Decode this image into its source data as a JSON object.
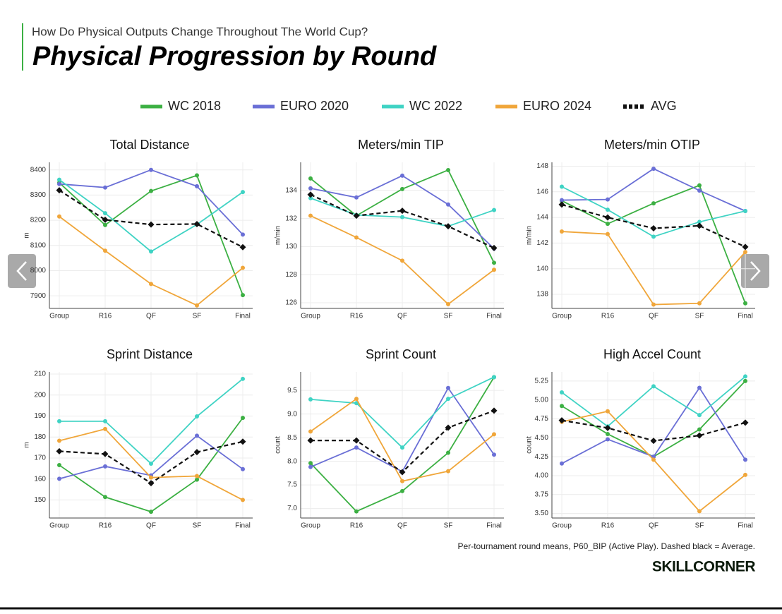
{
  "header": {
    "subtitle": "How Do Physical Outputs Change Throughout The World Cup?",
    "title": "Physical Progression by Round"
  },
  "legend": [
    {
      "name": "WC 2018",
      "color": "#3cb043"
    },
    {
      "name": "EURO 2020",
      "color": "#6a6fd6"
    },
    {
      "name": "WC 2022",
      "color": "#3fd3c4"
    },
    {
      "name": "EURO 2024",
      "color": "#f0a63a"
    },
    {
      "name": "AVG",
      "color": "#111111",
      "dashed": true
    }
  ],
  "chart_data": [
    {
      "type": "line",
      "title": "Total Distance",
      "ylabel": "m",
      "categories": [
        "Group",
        "R16",
        "QF",
        "SF",
        "Final"
      ],
      "series": [
        {
          "values": [
            8349,
            8181,
            8316,
            8378,
            7903
          ]
        },
        {
          "values": [
            8344,
            8330,
            8400,
            8335,
            8143
          ]
        },
        {
          "values": [
            8361,
            8228,
            8076,
            8183,
            8312
          ]
        },
        {
          "values": [
            8215,
            8079,
            7947,
            7862,
            8011
          ]
        },
        {
          "values": [
            8319,
            8202,
            8183,
            8185,
            8093
          ]
        }
      ],
      "ylim": [
        7850,
        8430
      ],
      "yticks": [
        7900,
        8000,
        8100,
        8200,
        8300,
        8400
      ],
      "grid": true
    },
    {
      "type": "line",
      "title": "Meters/min TIP",
      "ylabel": "m/min",
      "categories": [
        "Group",
        "R16",
        "QF",
        "SF",
        "Final"
      ],
      "series": [
        {
          "values": [
            134.85,
            132.2,
            134.1,
            135.45,
            128.85
          ]
        },
        {
          "values": [
            134.15,
            133.5,
            135.05,
            133.0,
            129.85
          ]
        },
        {
          "values": [
            133.45,
            132.25,
            132.1,
            131.45,
            132.6
          ]
        },
        {
          "values": [
            132.2,
            130.65,
            129.0,
            125.9,
            128.35
          ]
        },
        {
          "values": [
            133.7,
            132.2,
            132.55,
            131.45,
            129.9
          ]
        }
      ],
      "ylim": [
        125.6,
        136
      ],
      "yticks": [
        126,
        128,
        130,
        132,
        134
      ],
      "grid": true
    },
    {
      "type": "line",
      "title": "Meters/min OTIP",
      "ylabel": "m/min",
      "categories": [
        "Group",
        "R16",
        "QF",
        "SF",
        "Final"
      ],
      "series": [
        {
          "values": [
            145.3,
            143.5,
            145.1,
            146.5,
            137.3
          ]
        },
        {
          "values": [
            145.35,
            145.4,
            147.8,
            146.1,
            144.5
          ]
        },
        {
          "values": [
            146.4,
            144.6,
            142.5,
            143.65,
            144.5
          ]
        },
        {
          "values": [
            142.9,
            142.7,
            137.2,
            137.3,
            141.3
          ]
        },
        {
          "values": [
            145.0,
            144.0,
            143.15,
            143.35,
            141.7
          ]
        }
      ],
      "ylim": [
        136.9,
        148.3
      ],
      "yticks": [
        138,
        140,
        142,
        144,
        146,
        148
      ],
      "grid": true
    },
    {
      "type": "line",
      "title": "Sprint Distance",
      "ylabel": "m",
      "categories": [
        "Group",
        "R16",
        "QF",
        "SF",
        "Final"
      ],
      "series": [
        {
          "values": [
            166.6,
            151.4,
            144.4,
            159.7,
            189.1
          ]
        },
        {
          "values": [
            160.1,
            166.0,
            161.7,
            180.6,
            164.7
          ]
        },
        {
          "values": [
            187.5,
            187.5,
            167.3,
            189.8,
            207.7
          ]
        },
        {
          "values": [
            178.2,
            183.8,
            160.7,
            161.4,
            150
          ]
        },
        {
          "values": [
            173.2,
            171.9,
            158.0,
            172.8,
            177.8
          ]
        }
      ],
      "ylim": [
        141.4,
        211
      ],
      "yticks": [
        150,
        160,
        170,
        180,
        190,
        200,
        210
      ],
      "grid": true
    },
    {
      "type": "line",
      "title": "Sprint Count",
      "ylabel": "count",
      "categories": [
        "Group",
        "R16",
        "QF",
        "SF",
        "Final"
      ],
      "series": [
        {
          "values": [
            7.96,
            6.94,
            7.37,
            8.18,
            9.78
          ]
        },
        {
          "values": [
            7.88,
            8.29,
            7.78,
            9.55,
            8.14
          ]
        },
        {
          "values": [
            9.31,
            9.23,
            8.29,
            9.32,
            9.78
          ]
        },
        {
          "values": [
            8.63,
            9.32,
            7.58,
            7.79,
            8.57
          ]
        },
        {
          "values": [
            8.44,
            8.44,
            7.77,
            8.71,
            9.07
          ]
        }
      ],
      "ylim": [
        6.8,
        9.89
      ],
      "yticks": [
        {
          "value": 7,
          "label": "7.0"
        },
        7.5,
        {
          "value": 8,
          "label": "8.0"
        },
        8.5,
        {
          "value": 9,
          "label": "9.0"
        },
        9.5
      ],
      "grid": true
    },
    {
      "type": "line",
      "title": "High Accel Count",
      "ylabel": "count",
      "categories": [
        "Group",
        "R16",
        "QF",
        "SF",
        "Final"
      ],
      "series": [
        {
          "values": [
            4.92,
            4.55,
            4.25,
            4.61,
            5.25
          ]
        },
        {
          "values": [
            4.16,
            4.48,
            4.25,
            5.16,
            4.21
          ]
        },
        {
          "values": [
            5.1,
            4.65,
            5.18,
            4.8,
            5.31
          ]
        },
        {
          "values": [
            4.71,
            4.85,
            4.21,
            3.53,
            4.01
          ]
        },
        {
          "values": [
            4.73,
            4.63,
            4.46,
            4.53,
            4.7
          ]
        }
      ],
      "ylim": [
        3.44,
        5.37
      ],
      "yticks": [
        {
          "value": 3.5,
          "label": "3.50"
        },
        3.75,
        {
          "value": 4,
          "label": "4.00"
        },
        4.25,
        {
          "value": 4.5,
          "label": "4.50"
        },
        4.75,
        {
          "value": 5,
          "label": "5.00"
        },
        5.25
      ],
      "grid": true
    }
  ],
  "footnote": "Per-tournament round means, P60_BIP (Active Play). Dashed black = Average.",
  "brand": "SKILLCORNER"
}
